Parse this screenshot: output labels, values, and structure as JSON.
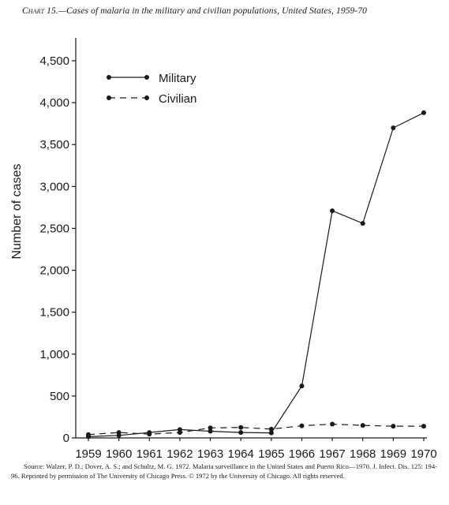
{
  "caption": {
    "prefix": "Chart 15.",
    "text": "—Cases of malaria in the military and civilian populations, United States, 1959-70"
  },
  "source_note": "Source: Walzer, P. D.; Dover, A. S.; and Schultz, M. G. 1972. Malaria surveillance in the United States and Puerto Rico—1970. J. Infect. Dis. 125: 194-96. Reprinted by permission of The University of Chicago Press. © 1972 by the University of Chicago. All rights reserved.",
  "chart_data": {
    "type": "line",
    "title": "",
    "xlabel": "",
    "ylabel": "Number of cases",
    "x": [
      1959,
      1960,
      1961,
      1962,
      1963,
      1964,
      1965,
      1966,
      1967,
      1968,
      1969,
      1970
    ],
    "x_tick_labels": [
      "1959",
      "1960",
      "1961",
      "1962",
      "1963",
      "1964",
      "1965",
      "1966",
      "1967",
      "1968",
      "1969",
      "1970"
    ],
    "y_ticks": [
      0,
      500,
      1000,
      1500,
      2000,
      2500,
      3000,
      3500,
      4000,
      4500
    ],
    "y_tick_labels": [
      "0",
      "500",
      "1,000",
      "1,500",
      "2,000",
      "2,500",
      "3,000",
      "3,500",
      "4,000",
      "4,500"
    ],
    "ylim": [
      0,
      4500
    ],
    "grid": false,
    "legend_position": "top-left",
    "series": [
      {
        "name": "Military",
        "line_style": "solid",
        "color": "#1a1a1a",
        "values": [
          15,
          30,
          65,
          100,
          80,
          65,
          60,
          620,
          2710,
          2560,
          3700,
          3880
        ]
      },
      {
        "name": "Civilian",
        "line_style": "dashed",
        "color": "#1a1a1a",
        "values": [
          40,
          65,
          45,
          65,
          120,
          125,
          105,
          145,
          165,
          150,
          140,
          140
        ]
      }
    ]
  }
}
